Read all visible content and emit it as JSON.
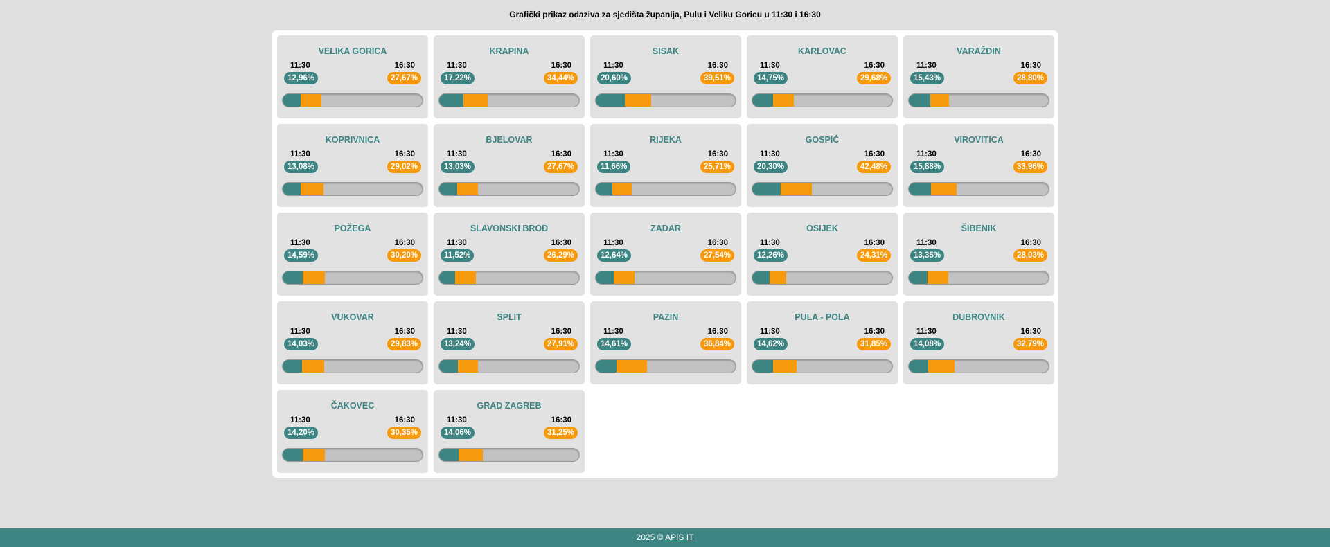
{
  "title": "Grafički prikaz odaziva za sjedišta županija, Pulu i Veliku Goricu u 11:30 i 16:30",
  "colors": {
    "accent": "#3c8583",
    "highlight": "#f7990d",
    "bar_track": "#c2c2c2"
  },
  "cards": [
    {
      "name": "VELIKA GORICA",
      "time1": "11:30",
      "time2": "16:30",
      "v1": "12,96%",
      "v2": "27,67%",
      "n1": 12.96,
      "n2": 27.67
    },
    {
      "name": "KRAPINA",
      "time1": "11:30",
      "time2": "16:30",
      "v1": "17,22%",
      "v2": "34,44%",
      "n1": 17.22,
      "n2": 34.44
    },
    {
      "name": "SISAK",
      "time1": "11:30",
      "time2": "16:30",
      "v1": "20,60%",
      "v2": "39,51%",
      "n1": 20.6,
      "n2": 39.51
    },
    {
      "name": "KARLOVAC",
      "time1": "11:30",
      "time2": "16:30",
      "v1": "14,75%",
      "v2": "29,68%",
      "n1": 14.75,
      "n2": 29.68
    },
    {
      "name": "VARAŽDIN",
      "time1": "11:30",
      "time2": "16:30",
      "v1": "15,43%",
      "v2": "28,80%",
      "n1": 15.43,
      "n2": 28.8
    },
    {
      "name": "KOPRIVNICA",
      "time1": "11:30",
      "time2": "16:30",
      "v1": "13,08%",
      "v2": "29,02%",
      "n1": 13.08,
      "n2": 29.02
    },
    {
      "name": "BJELOVAR",
      "time1": "11:30",
      "time2": "16:30",
      "v1": "13,03%",
      "v2": "27,67%",
      "n1": 13.03,
      "n2": 27.67
    },
    {
      "name": "RIJEKA",
      "time1": "11:30",
      "time2": "16:30",
      "v1": "11,66%",
      "v2": "25,71%",
      "n1": 11.66,
      "n2": 25.71
    },
    {
      "name": "GOSPIĆ",
      "time1": "11:30",
      "time2": "16:30",
      "v1": "20,30%",
      "v2": "42,48%",
      "n1": 20.3,
      "n2": 42.48
    },
    {
      "name": "VIROVITICA",
      "time1": "11:30",
      "time2": "16:30",
      "v1": "15,88%",
      "v2": "33,96%",
      "n1": 15.88,
      "n2": 33.96
    },
    {
      "name": "POŽEGA",
      "time1": "11:30",
      "time2": "16:30",
      "v1": "14,59%",
      "v2": "30,20%",
      "n1": 14.59,
      "n2": 30.2
    },
    {
      "name": "SLAVONSKI BROD",
      "time1": "11:30",
      "time2": "16:30",
      "v1": "11,52%",
      "v2": "26,29%",
      "n1": 11.52,
      "n2": 26.29
    },
    {
      "name": "ZADAR",
      "time1": "11:30",
      "time2": "16:30",
      "v1": "12,64%",
      "v2": "27,54%",
      "n1": 12.64,
      "n2": 27.54
    },
    {
      "name": "OSIJEK",
      "time1": "11:30",
      "time2": "16:30",
      "v1": "12,26%",
      "v2": "24,31%",
      "n1": 12.26,
      "n2": 24.31
    },
    {
      "name": "ŠIBENIK",
      "time1": "11:30",
      "time2": "16:30",
      "v1": "13,35%",
      "v2": "28,03%",
      "n1": 13.35,
      "n2": 28.03
    },
    {
      "name": "VUKOVAR",
      "time1": "11:30",
      "time2": "16:30",
      "v1": "14,03%",
      "v2": "29,83%",
      "n1": 14.03,
      "n2": 29.83
    },
    {
      "name": "SPLIT",
      "time1": "11:30",
      "time2": "16:30",
      "v1": "13,24%",
      "v2": "27,91%",
      "n1": 13.24,
      "n2": 27.91
    },
    {
      "name": "PAZIN",
      "time1": "11:30",
      "time2": "16:30",
      "v1": "14,61%",
      "v2": "36,84%",
      "n1": 14.61,
      "n2": 36.84
    },
    {
      "name": "PULA - POLA",
      "time1": "11:30",
      "time2": "16:30",
      "v1": "14,62%",
      "v2": "31,85%",
      "n1": 14.62,
      "n2": 31.85
    },
    {
      "name": "DUBROVNIK",
      "time1": "11:30",
      "time2": "16:30",
      "v1": "14,08%",
      "v2": "32,79%",
      "n1": 14.08,
      "n2": 32.79
    },
    {
      "name": "ČAKOVEC",
      "time1": "11:30",
      "time2": "16:30",
      "v1": "14,20%",
      "v2": "30,35%",
      "n1": 14.2,
      "n2": 30.35
    },
    {
      "name": "GRAD ZAGREB",
      "time1": "11:30",
      "time2": "16:30",
      "v1": "14,06%",
      "v2": "31,25%",
      "n1": 14.06,
      "n2": 31.25
    }
  ],
  "footer": {
    "prefix": "2025 © ",
    "link_label": "APIS IT"
  }
}
